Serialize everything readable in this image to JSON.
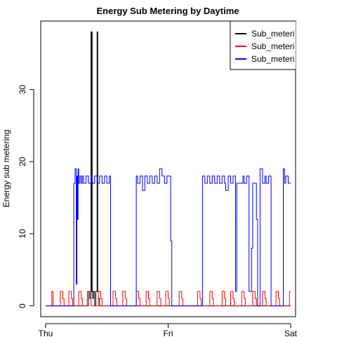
{
  "chart_data": {
    "type": "line",
    "title": "Energy Sub Metering by Daytime",
    "xlabel": "",
    "ylabel": "Energy sub metering",
    "x_ticks": [
      "Thu",
      "Fri",
      "Sat"
    ],
    "x_tick_values": [
      0,
      1,
      2
    ],
    "y_ticks": [
      "0",
      "10",
      "20",
      "30"
    ],
    "y_tick_values": [
      0,
      10,
      20,
      30
    ],
    "xlim": [
      -0.04,
      2.04
    ],
    "ylim": [
      -1.5,
      39.5
    ],
    "grid": false,
    "legend_position": "top-right",
    "series": [
      {
        "name": "Sub_meteri",
        "color": "#000000",
        "x": [
          0.0,
          0.35,
          0.35,
          0.36,
          0.36,
          0.37,
          0.37,
          0.372,
          0.372,
          0.375,
          0.375,
          0.378,
          0.378,
          0.38,
          0.38,
          0.385,
          0.385,
          0.39,
          0.39,
          0.4,
          0.4,
          0.41,
          0.41,
          0.42,
          0.42,
          0.425,
          0.425,
          0.43,
          0.43,
          0.44,
          0.44,
          2.0
        ],
        "y": [
          0,
          0,
          2,
          2,
          1,
          1,
          38,
          38,
          37,
          37,
          2,
          2,
          38,
          38,
          2,
          2,
          1,
          1,
          2,
          2,
          0,
          0,
          2,
          2,
          38,
          38,
          2,
          2,
          1,
          1,
          0,
          0
        ]
      },
      {
        "name": "Sub_meteri",
        "color": "#ff0000",
        "x": [
          0.0,
          0.05,
          0.05,
          0.06,
          0.06,
          0.12,
          0.12,
          0.14,
          0.14,
          0.15,
          0.15,
          0.19,
          0.19,
          0.21,
          0.21,
          0.22,
          0.22,
          0.27,
          0.27,
          0.29,
          0.29,
          0.3,
          0.3,
          0.34,
          0.34,
          0.36,
          0.36,
          0.37,
          0.37,
          0.43,
          0.43,
          0.45,
          0.45,
          0.46,
          0.46,
          0.55,
          0.55,
          0.57,
          0.57,
          0.58,
          0.58,
          0.63,
          0.63,
          0.65,
          0.65,
          0.66,
          0.66,
          0.74,
          0.74,
          0.76,
          0.76,
          0.77,
          0.77,
          0.82,
          0.82,
          0.84,
          0.84,
          0.85,
          0.85,
          0.91,
          0.91,
          0.93,
          0.93,
          0.94,
          0.94,
          0.98,
          0.98,
          1.0,
          1.0,
          1.01,
          1.01,
          1.09,
          1.09,
          1.11,
          1.11,
          1.12,
          1.12,
          1.24,
          1.24,
          1.26,
          1.26,
          1.27,
          1.27,
          1.34,
          1.34,
          1.36,
          1.36,
          1.37,
          1.37,
          1.44,
          1.44,
          1.46,
          1.46,
          1.47,
          1.47,
          1.51,
          1.51,
          1.53,
          1.53,
          1.54,
          1.54,
          1.6,
          1.6,
          1.62,
          1.62,
          1.63,
          1.63,
          1.69,
          1.69,
          1.71,
          1.71,
          1.72,
          1.72,
          1.77,
          1.77,
          1.79,
          1.79,
          1.8,
          1.8,
          1.88,
          1.88,
          1.9,
          1.9,
          1.91,
          1.91,
          1.99,
          1.99,
          2.0
        ],
        "y": [
          0,
          0,
          2,
          2,
          0,
          0,
          2,
          2,
          1,
          1,
          0,
          0,
          2,
          2,
          1,
          1,
          0,
          0,
          2,
          2,
          1,
          1,
          0,
          0,
          2,
          2,
          1,
          1,
          0,
          0,
          2,
          2,
          1,
          1,
          0,
          0,
          2,
          2,
          1,
          1,
          0,
          0,
          2,
          2,
          1,
          1,
          0,
          0,
          2,
          2,
          1,
          1,
          0,
          0,
          2,
          2,
          1,
          1,
          0,
          0,
          2,
          2,
          1,
          1,
          0,
          0,
          2,
          2,
          1,
          1,
          0,
          0,
          2,
          2,
          1,
          1,
          0,
          0,
          2,
          2,
          1,
          1,
          0,
          0,
          2,
          2,
          1,
          1,
          0,
          0,
          2,
          2,
          1,
          1,
          0,
          0,
          2,
          2,
          1,
          1,
          0,
          0,
          2,
          2,
          1,
          1,
          0,
          0,
          2,
          2,
          1,
          1,
          0,
          0,
          2,
          2,
          1,
          1,
          0,
          0,
          2,
          2,
          1,
          1,
          0,
          0,
          2,
          2
        ]
      },
      {
        "name": "Sub_meteri",
        "color": "#0000ff",
        "x": [
          0.0,
          0.23,
          0.23,
          0.24,
          0.24,
          0.25,
          0.25,
          0.255,
          0.255,
          0.26,
          0.26,
          0.265,
          0.265,
          0.27,
          0.27,
          0.28,
          0.28,
          0.29,
          0.29,
          0.3,
          0.3,
          0.31,
          0.31,
          0.33,
          0.33,
          0.35,
          0.35,
          0.37,
          0.37,
          0.38,
          0.38,
          0.4,
          0.4,
          0.42,
          0.42,
          0.44,
          0.44,
          0.46,
          0.46,
          0.48,
          0.48,
          0.5,
          0.5,
          0.52,
          0.52,
          0.53,
          0.53,
          0.74,
          0.74,
          0.75,
          0.75,
          0.77,
          0.77,
          0.79,
          0.79,
          0.81,
          0.81,
          0.83,
          0.83,
          0.85,
          0.85,
          0.87,
          0.87,
          0.89,
          0.89,
          0.91,
          0.91,
          0.93,
          0.93,
          0.95,
          0.95,
          0.97,
          0.97,
          0.99,
          0.99,
          1.02,
          1.02,
          1.03,
          1.03,
          1.28,
          1.28,
          1.3,
          1.3,
          1.32,
          1.32,
          1.34,
          1.34,
          1.36,
          1.36,
          1.38,
          1.38,
          1.4,
          1.4,
          1.42,
          1.42,
          1.44,
          1.44,
          1.46,
          1.46,
          1.47,
          1.47,
          1.49,
          1.49,
          1.51,
          1.51,
          1.53,
          1.53,
          1.55,
          1.55,
          1.56,
          1.56,
          1.61,
          1.61,
          1.62,
          1.62,
          1.64,
          1.64,
          1.66,
          1.66,
          1.68,
          1.68,
          1.69,
          1.69,
          1.72,
          1.72,
          1.73,
          1.73,
          1.75,
          1.75,
          1.77,
          1.77,
          1.79,
          1.79,
          1.8,
          1.8,
          1.82,
          1.82,
          1.84,
          1.84,
          1.94,
          1.94,
          1.95,
          1.95,
          1.96,
          1.96,
          1.98,
          1.98,
          2.0
        ],
        "y": [
          0,
          0,
          17,
          17,
          19,
          19,
          3,
          3,
          18,
          18,
          12,
          12,
          19,
          19,
          17,
          17,
          18,
          18,
          17,
          17,
          18,
          18,
          17,
          17,
          18,
          18,
          17,
          17,
          18,
          18,
          17,
          17,
          18,
          18,
          17,
          17,
          18,
          18,
          17,
          17,
          18,
          18,
          17,
          17,
          18,
          18,
          0,
          0,
          18,
          18,
          17,
          17,
          18,
          18,
          16,
          16,
          18,
          18,
          17,
          17,
          18,
          18,
          17,
          17,
          18,
          18,
          17,
          17,
          19,
          19,
          18,
          18,
          17,
          17,
          18,
          18,
          9,
          9,
          0,
          0,
          18,
          18,
          17,
          17,
          18,
          18,
          17,
          17,
          18,
          18,
          17,
          17,
          18,
          18,
          17,
          17,
          18,
          18,
          17,
          17,
          16,
          16,
          18,
          18,
          17,
          17,
          18,
          18,
          2,
          2,
          17,
          17,
          18,
          18,
          17,
          17,
          18,
          18,
          2,
          2,
          8,
          8,
          17,
          17,
          12,
          12,
          0,
          0,
          19,
          19,
          17,
          17,
          18,
          18,
          17,
          17,
          18,
          18,
          0,
          0,
          19,
          19,
          17,
          17,
          18,
          18,
          17,
          17
        ]
      }
    ]
  }
}
